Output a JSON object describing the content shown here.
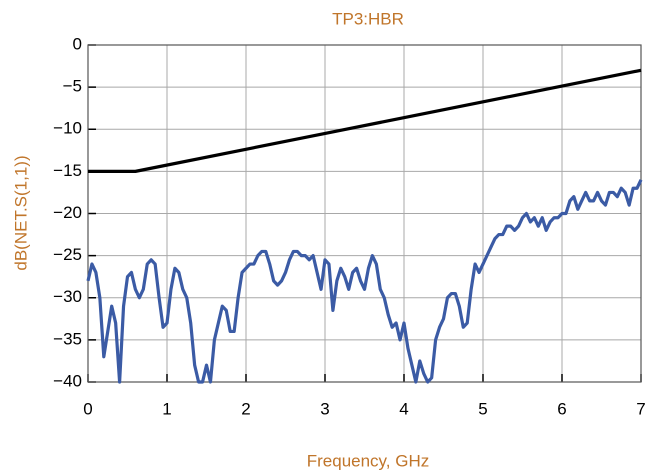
{
  "chart_data": {
    "type": "line",
    "title": "TP3:HBR",
    "xlabel": "Frequency, GHz",
    "ylabel": "dB(NET.S(1,1))",
    "xlim": [
      0,
      7
    ],
    "ylim": [
      -40,
      0
    ],
    "xticks": [
      0,
      1,
      2,
      3,
      4,
      5,
      6,
      7
    ],
    "yticks": [
      0,
      {
        "value": -5,
        "label": "−5"
      },
      {
        "value": -10,
        "label": "−10"
      },
      {
        "value": -15,
        "label": "−15"
      },
      {
        "value": -20,
        "label": "−20"
      },
      {
        "value": -25,
        "label": "−25"
      },
      {
        "value": -30,
        "label": "−30"
      },
      {
        "value": -35,
        "label": "−35"
      },
      {
        "value": -40,
        "label": "−40"
      }
    ],
    "grid": true,
    "series": [
      {
        "color": "#000000",
        "x": [
          0,
          0.6,
          7
        ],
        "values": [
          -15,
          -15,
          -3
        ]
      },
      {
        "color": "#3b5ba5",
        "x": [
          0,
          0.05,
          0.1,
          0.15,
          0.2,
          0.25,
          0.3,
          0.35,
          0.4,
          0.45,
          0.5,
          0.55,
          0.6,
          0.65,
          0.7,
          0.75,
          0.8,
          0.85,
          0.9,
          0.95,
          1,
          1.05,
          1.1,
          1.15,
          1.2,
          1.25,
          1.3,
          1.35,
          1.4,
          1.45,
          1.5,
          1.55,
          1.6,
          1.65,
          1.7,
          1.75,
          1.8,
          1.85,
          1.9,
          1.95,
          2,
          2.05,
          2.1,
          2.15,
          2.2,
          2.25,
          2.3,
          2.35,
          2.4,
          2.45,
          2.5,
          2.55,
          2.6,
          2.65,
          2.7,
          2.75,
          2.8,
          2.85,
          2.9,
          2.95,
          3,
          3.05,
          3.1,
          3.15,
          3.2,
          3.25,
          3.3,
          3.35,
          3.4,
          3.45,
          3.5,
          3.55,
          3.6,
          3.65,
          3.7,
          3.75,
          3.8,
          3.85,
          3.9,
          3.95,
          4,
          4.05,
          4.1,
          4.15,
          4.2,
          4.25,
          4.3,
          4.35,
          4.4,
          4.45,
          4.5,
          4.55,
          4.6,
          4.65,
          4.7,
          4.75,
          4.8,
          4.85,
          4.9,
          4.95,
          5,
          5.05,
          5.1,
          5.15,
          5.2,
          5.25,
          5.3,
          5.35,
          5.4,
          5.45,
          5.5,
          5.55,
          5.6,
          5.65,
          5.7,
          5.75,
          5.8,
          5.85,
          5.9,
          5.95,
          6,
          6.05,
          6.1,
          6.15,
          6.2,
          6.25,
          6.3,
          6.35,
          6.4,
          6.45,
          6.5,
          6.55,
          6.6,
          6.65,
          6.7,
          6.75,
          6.8,
          6.85,
          6.9,
          6.95,
          7
        ],
        "values": [
          -28,
          -26,
          -27,
          -30,
          -37,
          -34,
          -31,
          -33,
          -40,
          -31,
          -27.5,
          -27,
          -29,
          -30,
          -29,
          -26,
          -25.5,
          -26,
          -30,
          -33.5,
          -33,
          -29,
          -26.5,
          -27,
          -29,
          -30,
          -33,
          -38,
          -40,
          -40,
          -38,
          -40,
          -35,
          -33,
          -31,
          -31.5,
          -34,
          -34,
          -30,
          -27,
          -26.5,
          -26,
          -26,
          -25,
          -24.5,
          -24.5,
          -26,
          -28,
          -28.5,
          -28,
          -27,
          -25.5,
          -24.5,
          -24.5,
          -25,
          -25,
          -25.5,
          -25,
          -27,
          -29,
          -25.5,
          -26,
          -31.5,
          -28,
          -26.5,
          -27.5,
          -29,
          -27,
          -26.5,
          -28,
          -29,
          -26.5,
          -25,
          -26,
          -29,
          -30,
          -32,
          -33.5,
          -33,
          -35,
          -33,
          -36,
          -38,
          -40,
          -37.5,
          -39,
          -40,
          -39.5,
          -35,
          -33.5,
          -32.5,
          -30,
          -29.5,
          -29.5,
          -31,
          -33.5,
          -33,
          -29,
          -26,
          -27,
          -26,
          -25,
          -24,
          -23,
          -22.5,
          -22.5,
          -21.5,
          -21.5,
          -22,
          -21.5,
          -20.5,
          -20,
          -21,
          -20.5,
          -21.5,
          -20.5,
          -22,
          -21,
          -20.5,
          -20.5,
          -20,
          -20,
          -18.5,
          -18,
          -19.5,
          -18.5,
          -17.5,
          -18.5,
          -18.5,
          -17.5,
          -18.5,
          -19,
          -17.5,
          -17.5,
          -18,
          -17,
          -17.5,
          -19,
          -17,
          -17,
          -16
        ]
      }
    ]
  }
}
